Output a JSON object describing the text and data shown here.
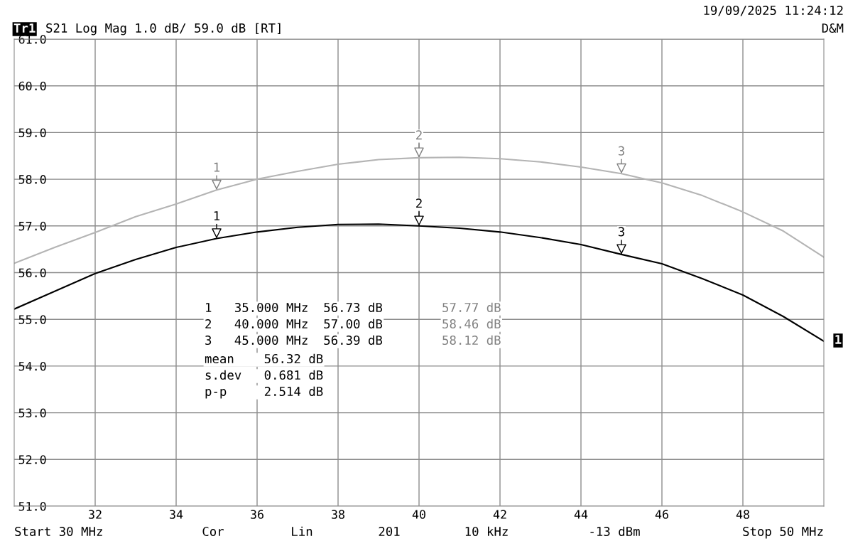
{
  "chart_data": {
    "type": "line",
    "x": [
      30,
      31,
      32,
      33,
      34,
      35,
      36,
      37,
      38,
      39,
      40,
      41,
      42,
      43,
      44,
      45,
      46,
      47,
      48,
      49,
      50
    ],
    "series": [
      {
        "color": "#b4b4b4",
        "values": [
          56.2,
          56.54,
          56.86,
          57.2,
          57.47,
          57.77,
          58.0,
          58.17,
          58.32,
          58.42,
          58.46,
          58.47,
          58.44,
          58.37,
          58.26,
          58.12,
          57.92,
          57.65,
          57.3,
          56.89,
          56.33
        ]
      },
      {
        "color": "#000000",
        "values": [
          55.22,
          55.6,
          55.98,
          56.28,
          56.54,
          56.73,
          56.87,
          56.97,
          57.03,
          57.04,
          57.0,
          56.95,
          56.87,
          56.75,
          56.6,
          56.39,
          56.19,
          55.87,
          55.52,
          55.06,
          54.53
        ]
      }
    ],
    "xlim": [
      30,
      50
    ],
    "xticks": [
      32,
      34,
      36,
      38,
      40,
      42,
      44,
      46,
      48
    ],
    "ylim": [
      51,
      61
    ],
    "yticks": [
      {
        "value": 51,
        "label": "51.0"
      },
      {
        "value": 52,
        "label": "52.0"
      },
      {
        "value": 53,
        "label": "53.0"
      },
      {
        "value": 54,
        "label": "54.0"
      },
      {
        "value": 55,
        "label": "55.0"
      },
      {
        "value": 56,
        "label": "56.0"
      },
      {
        "value": 57,
        "label": "57.0"
      },
      {
        "value": 58,
        "label": "58.0"
      },
      {
        "value": 59,
        "label": "59.0"
      },
      {
        "value": 60,
        "label": "60.0"
      },
      {
        "value": 61,
        "label": "61.0"
      }
    ],
    "grid": true,
    "legend": false,
    "marker": "none",
    "line_style": "solid",
    "annotations": [
      "Tr1",
      "S21 Log Mag 1.0 dB/ 59.0 dB [RT]",
      "19/09/2025 11:24:12",
      "D&M",
      "Start 30 MHz",
      "Cor",
      "Lin",
      "201",
      "10 kHz",
      "-13 dBm",
      "Stop 50 MHz",
      "1",
      "1   35.000 MHz  56.73 dB",
      "2   40.000 MHz  57.00 dB",
      "3   45.000 MHz  56.39 dB",
      "57.77 dB",
      "58.46 dB",
      "58.12 dB",
      "mean    56.32 dB",
      "s.dev   0.681 dB",
      "p-p     2.514 dB",
      {
        "text": "1",
        "x": 35,
        "y": 57.77
      },
      {
        "text": "2",
        "x": 40,
        "y": 58.46
      },
      {
        "text": "3",
        "x": 45,
        "y": 58.12
      },
      {
        "text": "1",
        "x": 35,
        "y": 56.73
      },
      {
        "text": "2",
        "x": 40,
        "y": 57.0
      },
      {
        "text": "3",
        "x": 45,
        "y": 56.39
      }
    ]
  }
}
